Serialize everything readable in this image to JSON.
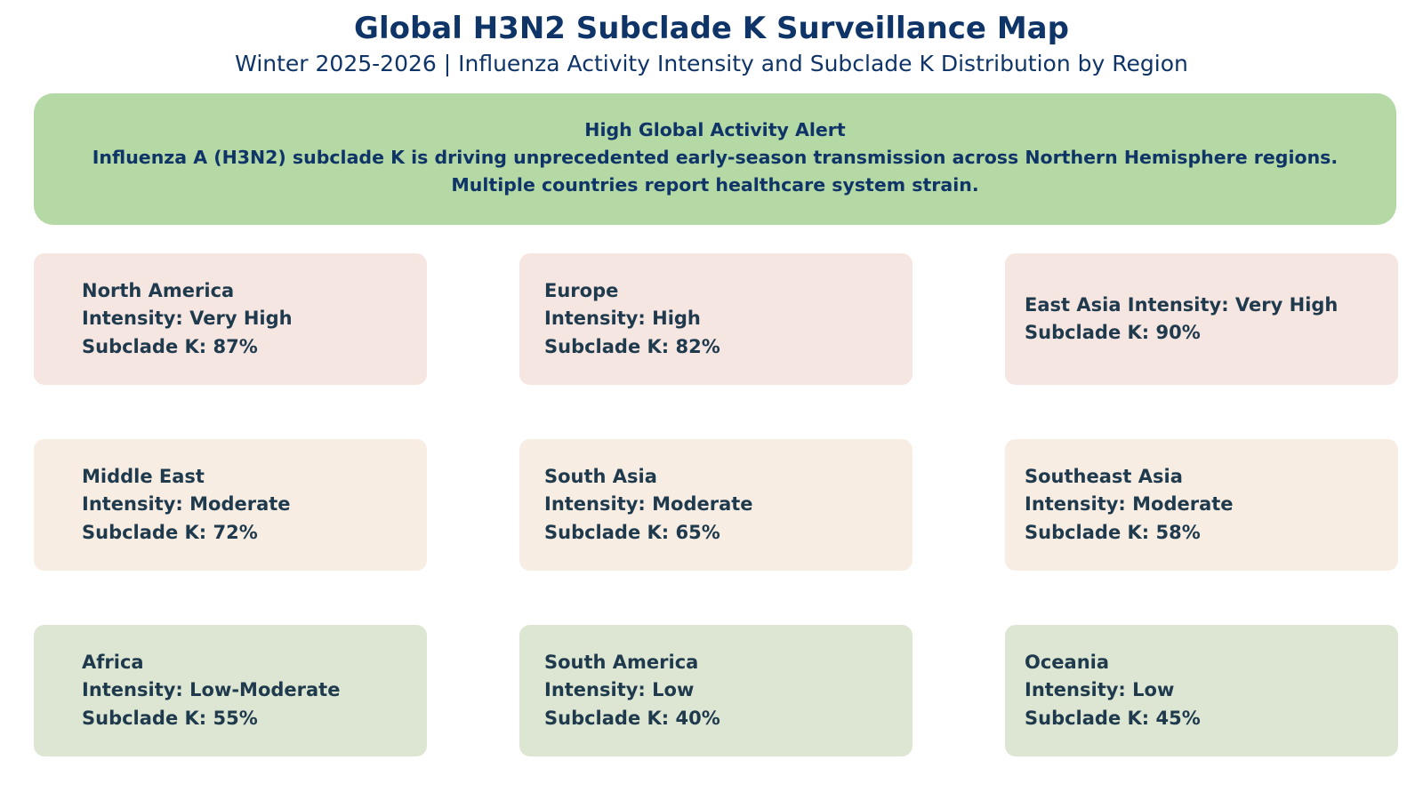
{
  "title": "Global H3N2 Subclade K Surveillance Map",
  "subtitle": "Winter 2025-2026 | Influenza Activity Intensity and Subclade K Distribution by Region",
  "alert": {
    "heading": "High Global Activity Alert",
    "line1": "Influenza A (H3N2) subclade K is driving unprecedented early-season transmission across Northern Hemisphere regions.",
    "line2": "Multiple countries report healthcare system strain.",
    "color": "#b5d9a4"
  },
  "legend_colors": {
    "very_high_high": "#f6e6e1",
    "moderate": "#f7ede3",
    "low": "#dde6d3"
  },
  "regions": [
    {
      "name": "North America",
      "intensity": "Intensity: Very High",
      "subclade": "Subclade K: 87%"
    },
    {
      "name": "Europe",
      "intensity": "Intensity: High",
      "subclade": "Subclade K: 82%"
    },
    {
      "name": "East Asia Intensity: Very High",
      "subclade": "Subclade K: 90%"
    },
    {
      "name": "Middle East",
      "intensity": "Intensity: Moderate",
      "subclade": "Subclade K: 72%"
    },
    {
      "name": "South Asia",
      "intensity": "Intensity: Moderate",
      "subclade": "Subclade K: 65%"
    },
    {
      "name": "Southeast Asia",
      "intensity": "Intensity: Moderate",
      "subclade": "Subclade K: 58%"
    },
    {
      "name": "Africa",
      "intensity": "Intensity: Low-Moderate",
      "subclade": "Subclade K: 55%"
    },
    {
      "name": "South America",
      "intensity": "Intensity: Low",
      "subclade": "Subclade K: 40%"
    },
    {
      "name": "Oceania",
      "intensity": "Intensity: Low",
      "subclade": "Subclade K: 45%"
    }
  ]
}
